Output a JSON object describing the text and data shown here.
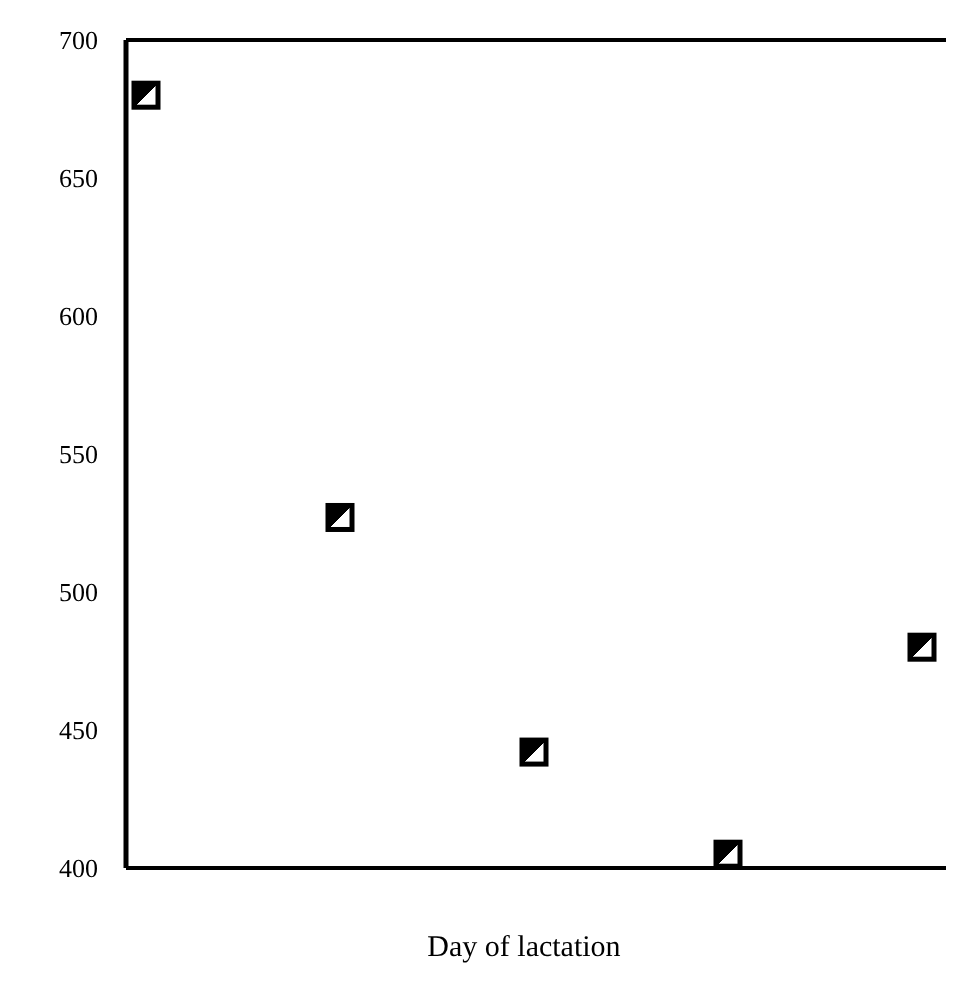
{
  "chart_data": {
    "type": "scatter",
    "xlabel": "Day of lactation",
    "categories": [
      null,
      null,
      null,
      null,
      null
    ],
    "series": [
      {
        "color": "#000000",
        "values": [
          680,
          527,
          442,
          405,
          480
        ]
      }
    ],
    "ylim": [
      400,
      700
    ],
    "yticks": [
      400,
      450,
      500,
      550,
      600,
      650,
      700
    ],
    "grid": false,
    "marker": "square"
  }
}
